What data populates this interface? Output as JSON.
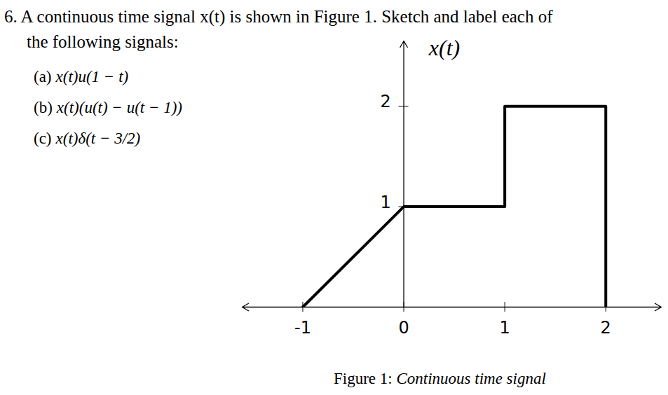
{
  "problem": {
    "number": "6.",
    "lines": [
      "A continuous time signal x(t) is shown in Figure 1. Sketch and label each of",
      "the following signals:"
    ],
    "items": [
      {
        "label": "(a)",
        "expr": "x(t)u(1 − t)"
      },
      {
        "label": "(b)",
        "expr": "x(t)(u(t) − u(t − 1))"
      },
      {
        "label": "(c)",
        "expr": "x(t)δ(t − 3/2)"
      }
    ]
  },
  "chart_data": {
    "type": "line",
    "ylabel": "x(t)",
    "x": [
      -1,
      0,
      1,
      1,
      2,
      2
    ],
    "values": [
      0,
      1,
      1,
      2,
      2,
      0
    ],
    "color": "#000000",
    "xlim": [
      -1.6,
      2.55
    ],
    "ylim": [
      0,
      2.65
    ],
    "xticks": [
      -1,
      0,
      1,
      2
    ],
    "yticks": [
      1,
      2
    ],
    "grid": false
  },
  "caption": {
    "label": "Figure 1:",
    "text": "Continuous time signal"
  }
}
